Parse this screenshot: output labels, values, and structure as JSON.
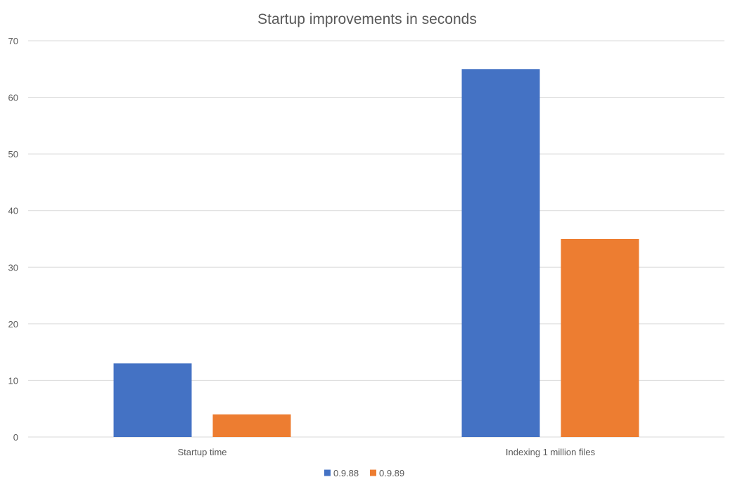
{
  "chart_data": {
    "type": "bar",
    "title": "Startup improvements in seconds",
    "xlabel": "",
    "ylabel": "",
    "categories": [
      "Startup time",
      "Indexing 1 million files"
    ],
    "series": [
      {
        "name": "0.9.88",
        "values": [
          13,
          65
        ],
        "color": "#4472C4"
      },
      {
        "name": "0.9.89",
        "values": [
          4,
          35
        ],
        "color": "#ED7D31"
      }
    ],
    "ylim": [
      0,
      70
    ],
    "yticks": [
      0,
      10,
      20,
      30,
      40,
      50,
      60,
      70
    ],
    "grid": true,
    "legend_position": "bottom",
    "gridline_color": "#D9D9D9",
    "text_color": "#595959"
  }
}
